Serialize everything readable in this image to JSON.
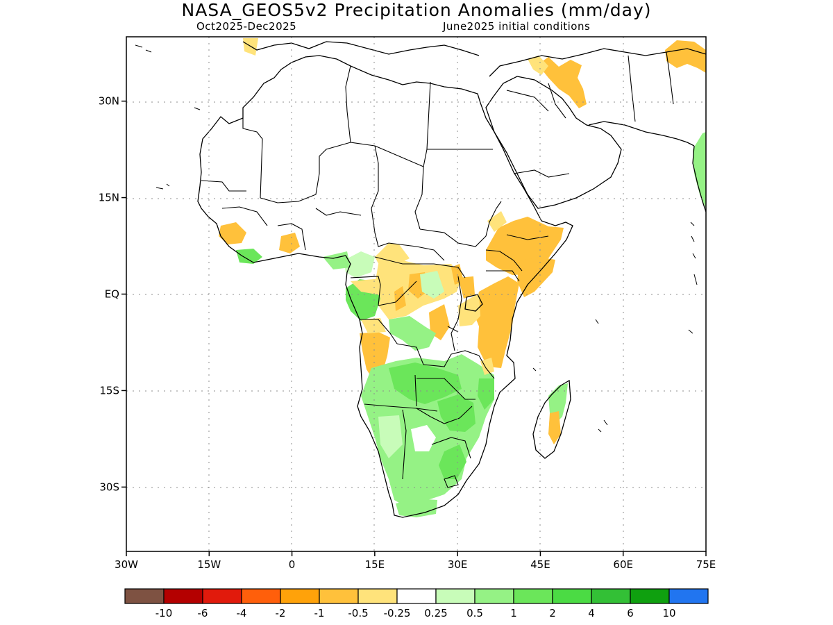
{
  "title": "NASA_GEOS5v2 Precipitation Anomalies (mm/day)",
  "subtitle_left": "Oct2025-Dec2025",
  "subtitle_right": "June2025 initial conditions",
  "map": {
    "lon_range": [
      -30,
      75
    ],
    "lat_range": [
      -40,
      40
    ],
    "x_ticks": [
      {
        "lon": -30,
        "label": "30W"
      },
      {
        "lon": -15,
        "label": "15W"
      },
      {
        "lon": 0,
        "label": "0"
      },
      {
        "lon": 15,
        "label": "15E"
      },
      {
        "lon": 30,
        "label": "30E"
      },
      {
        "lon": 45,
        "label": "45E"
      },
      {
        "lon": 60,
        "label": "60E"
      },
      {
        "lon": 75,
        "label": "75E"
      }
    ],
    "y_ticks": [
      {
        "lat": 30,
        "label": "30N"
      },
      {
        "lat": 15,
        "label": "15N"
      },
      {
        "lat": 0,
        "label": "EQ"
      },
      {
        "lat": -15,
        "label": "15S"
      },
      {
        "lat": -30,
        "label": "30S"
      }
    ],
    "grid": "dotted",
    "anomaly_regions": [
      {
        "region": "Horn of Africa / Ethiopia",
        "category": "-1 to -0.5",
        "color": "#ffc13b"
      },
      {
        "region": "East Africa (Kenya / Tanzania)",
        "category": "-1 to -0.5",
        "color": "#ffc13b"
      },
      {
        "region": "Arabian Peninsula north",
        "category": "-1 to -0.5",
        "color": "#ffc13b"
      },
      {
        "region": "Angola coast",
        "category": "-1 to -0.5",
        "color": "#ffc13b"
      },
      {
        "region": "Central DR Congo",
        "category": "-0.5 to -0.25",
        "color": "#ffe37b"
      },
      {
        "region": "Southern Africa interior",
        "category": "0.5 to 1",
        "color": "#95f285"
      },
      {
        "region": "Zambia / Zimbabwe",
        "category": "1 to 2",
        "color": "#6be65a"
      },
      {
        "region": "Gabon / Congo coast",
        "category": "1 to 2",
        "color": "#6be65a"
      },
      {
        "region": "Madagascar east",
        "category": "0.5 to 1",
        "color": "#95f285"
      },
      {
        "region": "Madagascar west",
        "category": "-1 to -0.5",
        "color": "#ffc13b"
      }
    ]
  },
  "colorbar": {
    "colors": [
      "#7e5242",
      "#b40000",
      "#e11a0c",
      "#ff5f0b",
      "#ffa20a",
      "#ffc13b",
      "#ffe37b",
      "#ffffff",
      "#c8fcb9",
      "#95f285",
      "#6be65a",
      "#4bdb44",
      "#33c036",
      "#0fa00f",
      "#2175f0"
    ],
    "labels": [
      "-10",
      "-6",
      "-4",
      "-2",
      "-1",
      "-0.5",
      "-0.25",
      "0.25",
      "0.5",
      "1",
      "2",
      "4",
      "6",
      "10"
    ]
  }
}
